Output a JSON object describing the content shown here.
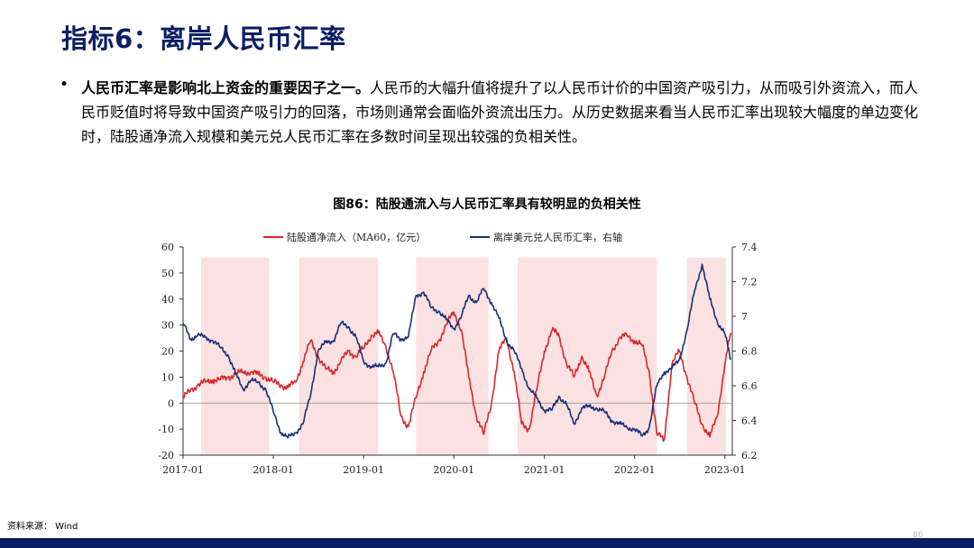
{
  "slide": {
    "title": "指标6：离岸人民币汇率",
    "bullet_bold": "人民币汇率是影响北上资金的重要因子之一。",
    "bullet_text": "人民币的大幅升值将提升了以人民币计价的中国资产吸引力，从而吸引外资流入，而人民币贬值时将导致中国资产吸引力的回落，市场则通常会面临外资流出压力。从历史数据来看当人民币汇率出现较大幅度的单边变化时，陆股通净流入规模和美元兑人民币汇率在多数时间呈现出较强的负相关性。",
    "source": "资料来源： Wind",
    "page_number": "86"
  },
  "chart_data": {
    "type": "line",
    "title": "图86：陆股通流入与人民币汇率具有较明显的负相关性",
    "x_ticks": [
      "2017-01",
      "2018-01",
      "2019-01",
      "2020-01",
      "2021-01",
      "2022-01",
      "2023-01"
    ],
    "x_range": [
      "2017-01-01",
      "2023-01-31"
    ],
    "left_axis": {
      "ylim": [
        -20,
        60
      ],
      "ticks": [
        "60",
        "50",
        "40",
        "30",
        "20",
        "10",
        "0",
        "-10",
        "-20"
      ]
    },
    "right_axis": {
      "ylim": [
        6.2,
        7.4
      ],
      "ticks": [
        "7.4",
        "7.2",
        "7",
        "6.8",
        "6.6",
        "6.4",
        "6.2"
      ]
    },
    "shaded_periods": [
      [
        "2017-03-15",
        "2017-12-15"
      ],
      [
        "2018-04-15",
        "2019-03-01"
      ],
      [
        "2019-08-01",
        "2020-05-20"
      ],
      [
        "2020-09-15",
        "2022-04-01"
      ],
      [
        "2022-08-01",
        "2023-01-05"
      ]
    ],
    "shade_color": "#fbe1e1",
    "series": [
      {
        "name": "陆股通净流入（MA60，亿元）",
        "axis": "left",
        "color": "#d9262b",
        "points": [
          [
            "2017-01-01",
            2
          ],
          [
            "2017-02-01",
            5
          ],
          [
            "2017-03-01",
            7
          ],
          [
            "2017-04-01",
            8
          ],
          [
            "2017-05-01",
            9
          ],
          [
            "2017-06-01",
            9
          ],
          [
            "2017-07-01",
            10
          ],
          [
            "2017-08-01",
            11
          ],
          [
            "2017-09-01",
            12
          ],
          [
            "2017-10-01",
            12
          ],
          [
            "2017-11-01",
            11
          ],
          [
            "2017-12-01",
            10
          ],
          [
            "2018-01-01",
            8
          ],
          [
            "2018-02-01",
            7
          ],
          [
            "2018-03-01",
            6
          ],
          [
            "2018-04-01",
            8
          ],
          [
            "2018-05-01",
            16
          ],
          [
            "2018-06-01",
            24
          ],
          [
            "2018-07-01",
            18
          ],
          [
            "2018-08-01",
            13
          ],
          [
            "2018-09-01",
            12
          ],
          [
            "2018-10-01",
            16
          ],
          [
            "2018-11-01",
            20
          ],
          [
            "2018-12-01",
            18
          ],
          [
            "2019-01-01",
            21
          ],
          [
            "2019-02-01",
            26
          ],
          [
            "2019-03-01",
            27
          ],
          [
            "2019-04-01",
            22
          ],
          [
            "2019-05-01",
            12
          ],
          [
            "2019-06-01",
            -5
          ],
          [
            "2019-07-01",
            -9
          ],
          [
            "2019-08-01",
            2
          ],
          [
            "2019-09-01",
            12
          ],
          [
            "2019-10-01",
            20
          ],
          [
            "2019-11-01",
            24
          ],
          [
            "2019-12-01",
            30
          ],
          [
            "2020-01-01",
            35
          ],
          [
            "2020-02-01",
            28
          ],
          [
            "2020-03-01",
            10
          ],
          [
            "2020-04-01",
            -5
          ],
          [
            "2020-05-01",
            -12
          ],
          [
            "2020-06-01",
            0
          ],
          [
            "2020-07-01",
            20
          ],
          [
            "2020-08-01",
            25
          ],
          [
            "2020-09-01",
            12
          ],
          [
            "2020-10-01",
            -8
          ],
          [
            "2020-11-01",
            -10
          ],
          [
            "2020-12-01",
            5
          ],
          [
            "2021-01-01",
            20
          ],
          [
            "2021-02-01",
            28
          ],
          [
            "2021-03-01",
            26
          ],
          [
            "2021-04-01",
            15
          ],
          [
            "2021-05-01",
            10
          ],
          [
            "2021-06-01",
            18
          ],
          [
            "2021-07-01",
            12
          ],
          [
            "2021-08-01",
            3
          ],
          [
            "2021-09-01",
            10
          ],
          [
            "2021-10-01",
            20
          ],
          [
            "2021-11-01",
            25
          ],
          [
            "2021-12-01",
            26
          ],
          [
            "2022-01-01",
            24
          ],
          [
            "2022-02-01",
            22
          ],
          [
            "2022-03-01",
            12
          ],
          [
            "2022-04-01",
            -12
          ],
          [
            "2022-05-01",
            -14
          ],
          [
            "2022-06-01",
            15
          ],
          [
            "2022-07-01",
            20
          ],
          [
            "2022-08-01",
            10
          ],
          [
            "2022-09-01",
            0
          ],
          [
            "2022-10-01",
            -8
          ],
          [
            "2022-11-01",
            -13
          ],
          [
            "2022-12-01",
            -5
          ],
          [
            "2023-01-01",
            15
          ],
          [
            "2023-01-25",
            27
          ]
        ]
      },
      {
        "name": "离岸美元兑人民币汇率，右轴",
        "axis": "right",
        "color": "#16307a",
        "points": [
          [
            "2017-01-01",
            6.96
          ],
          [
            "2017-02-01",
            6.87
          ],
          [
            "2017-03-01",
            6.89
          ],
          [
            "2017-04-01",
            6.88
          ],
          [
            "2017-05-01",
            6.86
          ],
          [
            "2017-06-01",
            6.82
          ],
          [
            "2017-07-01",
            6.78
          ],
          [
            "2017-08-01",
            6.67
          ],
          [
            "2017-09-01",
            6.58
          ],
          [
            "2017-10-01",
            6.63
          ],
          [
            "2017-11-01",
            6.62
          ],
          [
            "2017-12-01",
            6.58
          ],
          [
            "2018-01-01",
            6.45
          ],
          [
            "2018-02-01",
            6.33
          ],
          [
            "2018-03-01",
            6.3
          ],
          [
            "2018-04-01",
            6.33
          ],
          [
            "2018-05-01",
            6.38
          ],
          [
            "2018-06-01",
            6.55
          ],
          [
            "2018-07-01",
            6.8
          ],
          [
            "2018-08-01",
            6.85
          ],
          [
            "2018-09-01",
            6.86
          ],
          [
            "2018-10-01",
            6.96
          ],
          [
            "2018-11-01",
            6.94
          ],
          [
            "2018-12-01",
            6.88
          ],
          [
            "2019-01-01",
            6.74
          ],
          [
            "2019-02-01",
            6.71
          ],
          [
            "2019-03-01",
            6.71
          ],
          [
            "2019-04-01",
            6.73
          ],
          [
            "2019-05-01",
            6.9
          ],
          [
            "2019-06-01",
            6.87
          ],
          [
            "2019-07-01",
            6.88
          ],
          [
            "2019-08-01",
            7.12
          ],
          [
            "2019-09-01",
            7.14
          ],
          [
            "2019-10-01",
            7.05
          ],
          [
            "2019-11-01",
            7.03
          ],
          [
            "2019-12-01",
            6.98
          ],
          [
            "2020-01-01",
            6.93
          ],
          [
            "2020-02-01",
            7.0
          ],
          [
            "2020-03-01",
            7.12
          ],
          [
            "2020-04-01",
            7.08
          ],
          [
            "2020-05-01",
            7.16
          ],
          [
            "2020-06-01",
            7.08
          ],
          [
            "2020-07-01",
            6.99
          ],
          [
            "2020-08-01",
            6.86
          ],
          [
            "2020-09-01",
            6.8
          ],
          [
            "2020-10-01",
            6.7
          ],
          [
            "2020-11-01",
            6.58
          ],
          [
            "2020-12-01",
            6.53
          ],
          [
            "2021-01-01",
            6.46
          ],
          [
            "2021-02-01",
            6.46
          ],
          [
            "2021-03-01",
            6.54
          ],
          [
            "2021-04-01",
            6.49
          ],
          [
            "2021-05-01",
            6.38
          ],
          [
            "2021-06-01",
            6.47
          ],
          [
            "2021-07-01",
            6.48
          ],
          [
            "2021-08-01",
            6.47
          ],
          [
            "2021-09-01",
            6.45
          ],
          [
            "2021-10-01",
            6.4
          ],
          [
            "2021-11-01",
            6.38
          ],
          [
            "2021-12-01",
            6.36
          ],
          [
            "2022-01-01",
            6.35
          ],
          [
            "2022-02-01",
            6.31
          ],
          [
            "2022-03-01",
            6.36
          ],
          [
            "2022-04-01",
            6.6
          ],
          [
            "2022-05-01",
            6.68
          ],
          [
            "2022-06-01",
            6.7
          ],
          [
            "2022-07-01",
            6.75
          ],
          [
            "2022-08-01",
            6.92
          ],
          [
            "2022-09-01",
            7.15
          ],
          [
            "2022-10-01",
            7.3
          ],
          [
            "2022-11-01",
            7.1
          ],
          [
            "2022-12-01",
            6.97
          ],
          [
            "2023-01-01",
            6.9
          ],
          [
            "2023-01-25",
            6.75
          ]
        ]
      }
    ]
  }
}
